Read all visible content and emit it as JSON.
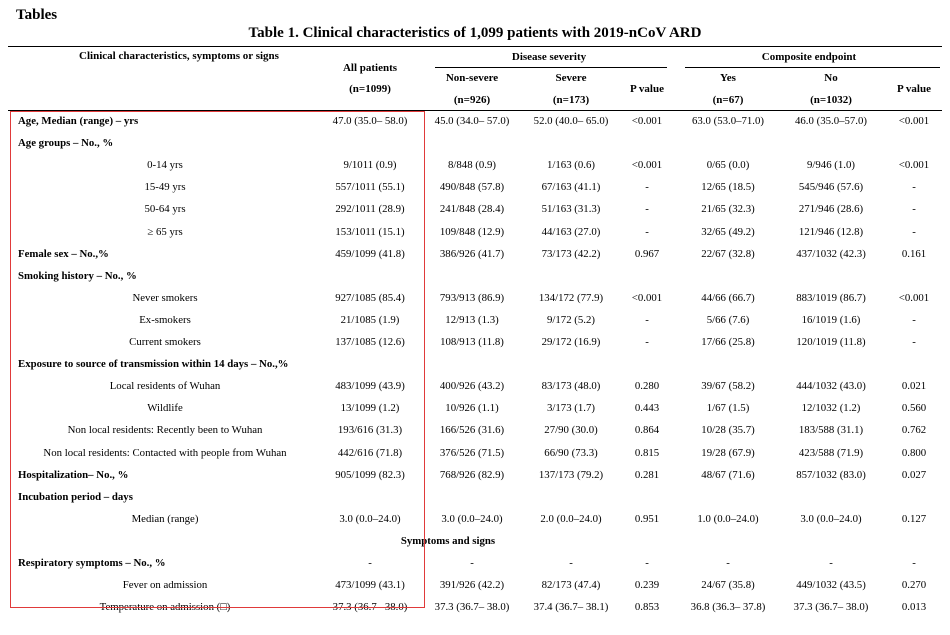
{
  "heading": "Tables",
  "caption": "Table 1. Clinical characteristics of 1,099 patients with 2019-nCoV ARD",
  "header": {
    "char": "Clinical characteristics, symptoms or signs",
    "all": "All patients",
    "all_n": "(n=1099)",
    "severity": "Disease severity",
    "nonsevere": "Non-severe",
    "nonsevere_n": "(n=926)",
    "severe": "Severe",
    "severe_n": "(n=173)",
    "p1": "P value",
    "composite": "Composite endpoint",
    "yes": "Yes",
    "yes_n": "(n=67)",
    "no": "No",
    "no_n": "(n=1032)",
    "p2": "P value"
  },
  "rows": [
    {
      "label": "Age, Median (range) – yrs",
      "kind": "cat",
      "values": [
        "47.0 (35.0– 58.0)",
        "45.0 (34.0– 57.0)",
        "52.0 (40.0– 65.0)",
        "<0.001",
        "63.0 (53.0–71.0)",
        "46.0 (35.0–57.0)",
        "<0.001"
      ]
    },
    {
      "label": "Age groups – No., %",
      "kind": "cat",
      "values": []
    },
    {
      "label": "0-14 yrs",
      "kind": "sub",
      "values": [
        "9/1011 (0.9)",
        "8/848 (0.9)",
        "1/163 (0.6)",
        "<0.001",
        "0/65 (0.0)",
        "9/946 (1.0)",
        "<0.001"
      ]
    },
    {
      "label": "15-49 yrs",
      "kind": "sub",
      "values": [
        "557/1011 (55.1)",
        "490/848 (57.8)",
        "67/163 (41.1)",
        "-",
        "12/65 (18.5)",
        "545/946 (57.6)",
        "-"
      ]
    },
    {
      "label": "50-64 yrs",
      "kind": "sub",
      "values": [
        "292/1011 (28.9)",
        "241/848 (28.4)",
        "51/163 (31.3)",
        "-",
        "21/65 (32.3)",
        "271/946 (28.6)",
        "-"
      ]
    },
    {
      "label": "≥ 65 yrs",
      "kind": "sub",
      "values": [
        "153/1011 (15.1)",
        "109/848 (12.9)",
        "44/163 (27.0)",
        "-",
        "32/65 (49.2)",
        "121/946 (12.8)",
        "-"
      ]
    },
    {
      "label": "Female sex – No.,%",
      "kind": "cat",
      "values": [
        "459/1099 (41.8)",
        "386/926 (41.7)",
        "73/173 (42.2)",
        "0.967",
        "22/67 (32.8)",
        "437/1032 (42.3)",
        "0.161"
      ]
    },
    {
      "label": "Smoking history – No., %",
      "kind": "cat",
      "values": []
    },
    {
      "label": "Never smokers",
      "kind": "sub",
      "values": [
        "927/1085 (85.4)",
        "793/913 (86.9)",
        "134/172 (77.9)",
        "<0.001",
        "44/66 (66.7)",
        "883/1019 (86.7)",
        "<0.001"
      ]
    },
    {
      "label": "Ex-smokers",
      "kind": "sub",
      "values": [
        "21/1085 (1.9)",
        "12/913 (1.3)",
        "9/172 (5.2)",
        "-",
        "5/66 (7.6)",
        "16/1019 (1.6)",
        "-"
      ]
    },
    {
      "label": "Current smokers",
      "kind": "sub",
      "values": [
        "137/1085 (12.6)",
        "108/913 (11.8)",
        "29/172 (16.9)",
        "-",
        "17/66 (25.8)",
        "120/1019 (11.8)",
        "-"
      ]
    },
    {
      "label": "Exposure to source of transmission within 14 days – No.,%",
      "kind": "cat",
      "values": []
    },
    {
      "label": "Local residents of Wuhan",
      "kind": "sub",
      "values": [
        "483/1099 (43.9)",
        "400/926 (43.2)",
        "83/173 (48.0)",
        "0.280",
        "39/67 (58.2)",
        "444/1032 (43.0)",
        "0.021"
      ]
    },
    {
      "label": "Wildlife",
      "kind": "sub",
      "values": [
        "13/1099 (1.2)",
        "10/926 (1.1)",
        "3/173 (1.7)",
        "0.443",
        "1/67 (1.5)",
        "12/1032 (1.2)",
        "0.560"
      ]
    },
    {
      "label": "Non local residents: Recently been to Wuhan",
      "kind": "sub",
      "values": [
        "193/616 (31.3)",
        "166/526 (31.6)",
        "27/90 (30.0)",
        "0.864",
        "10/28 (35.7)",
        "183/588 (31.1)",
        "0.762"
      ]
    },
    {
      "label": "Non local residents: Contacted with people from Wuhan",
      "kind": "sub",
      "values": [
        "442/616 (71.8)",
        "376/526 (71.5)",
        "66/90 (73.3)",
        "0.815",
        "19/28 (67.9)",
        "423/588 (71.9)",
        "0.800"
      ]
    },
    {
      "label": "Hospitalization– No., %",
      "kind": "cat",
      "values": [
        "905/1099 (82.3)",
        "768/926 (82.9)",
        "137/173 (79.2)",
        "0.281",
        "48/67 (71.6)",
        "857/1032 (83.0)",
        "0.027"
      ]
    },
    {
      "label": "Incubation period – days",
      "kind": "cat",
      "values": []
    },
    {
      "label": "Median (range)",
      "kind": "sub",
      "values": [
        "3.0 (0.0–24.0)",
        "3.0 (0.0–24.0)",
        "2.0 (0.0–24.0)",
        "0.951",
        "1.0 (0.0–24.0)",
        "3.0 (0.0–24.0)",
        "0.127"
      ]
    },
    {
      "label": "Symptoms and signs",
      "kind": "section",
      "values": []
    },
    {
      "label": "Respiratory symptoms – No., %",
      "kind": "cat",
      "values": [
        "-",
        "-",
        "-",
        "-",
        "-",
        "-",
        "-"
      ]
    },
    {
      "label": "Fever on admission",
      "kind": "sub",
      "values": [
        "473/1099 (43.1)",
        "391/926 (42.2)",
        "82/173 (47.4)",
        "0.239",
        "24/67 (35.8)",
        "449/1032 (43.5)",
        "0.270"
      ]
    },
    {
      "label": "Temperature on admission (□)",
      "kind": "sub",
      "values": [
        "37.3 (36.7– 38.0)",
        "37.3 (36.7– 38.0)",
        "37.4 (36.7– 38.1)",
        "0.853",
        "36.8 (36.3– 37.8)",
        "37.3 (36.7– 38.0)",
        "0.013"
      ]
    }
  ]
}
